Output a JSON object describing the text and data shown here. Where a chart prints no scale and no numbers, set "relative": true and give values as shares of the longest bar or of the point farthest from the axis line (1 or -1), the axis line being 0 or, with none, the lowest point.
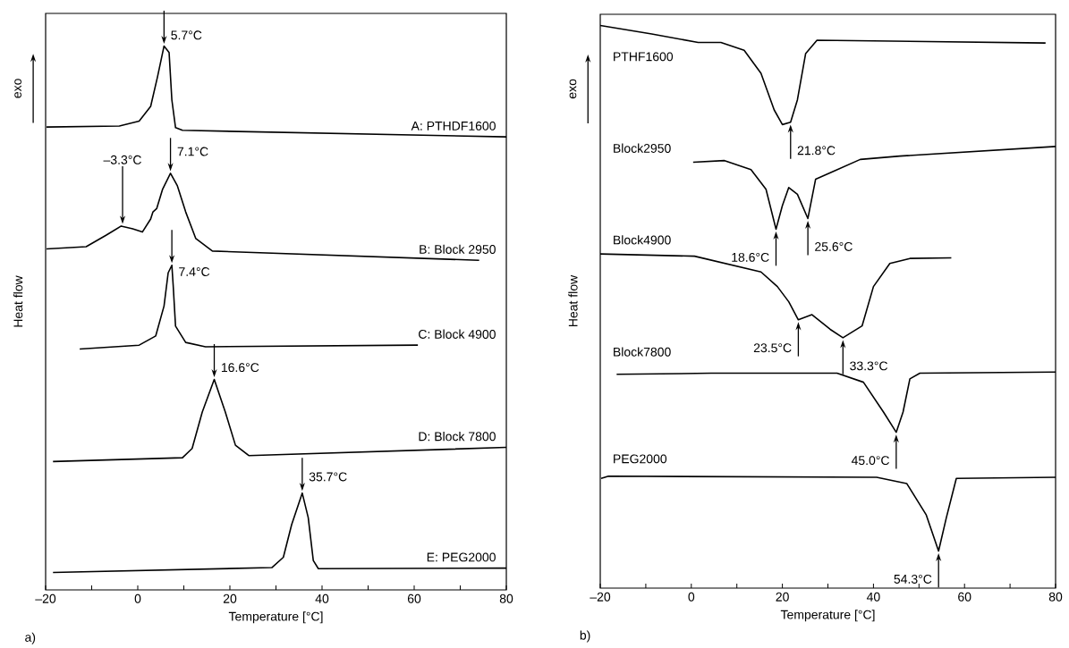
{
  "chart_data": [
    {
      "type": "line",
      "relative": true,
      "xlabel": "Temperature [°C]",
      "ylabel": "Heat flow",
      "xlim": [
        -20,
        80
      ],
      "xticks": [
        {
          "value": -20,
          "label": "–20"
        },
        {
          "value": -10,
          "label": null
        },
        0,
        {
          "value": 10,
          "label": null
        },
        20,
        {
          "value": 30,
          "label": null
        },
        40,
        {
          "value": 50,
          "label": null
        },
        60,
        {
          "value": 70,
          "label": null
        },
        80
      ],
      "marker": "none",
      "series": [
        {
          "name": "A: PTHDF1600",
          "color": "#000000",
          "x": [
            -19.8,
            -4.0,
            0.3,
            2.8,
            4.3,
            5.5,
            5.7,
            6.8,
            7.4,
            8.2,
            9.7,
            80
          ],
          "values": [
            0.851,
            0.853,
            0.862,
            0.889,
            0.944,
            0.992,
            1,
            0.988,
            0.901,
            0.85,
            0.845,
            0.833
          ]
        },
        {
          "name": "B: Block 2950",
          "color": "#000000",
          "x": [
            -19.8,
            -11.2,
            -6.9,
            -3.6,
            -1.1,
            1.0,
            2.8,
            3.3,
            4.1,
            5.4,
            7.1,
            8.6,
            10.4,
            12.6,
            16.2,
            74.1
          ],
          "values": [
            0.627,
            0.631,
            0.652,
            0.669,
            0.664,
            0.658,
            0.682,
            0.695,
            0.701,
            0.737,
            0.766,
            0.743,
            0.695,
            0.646,
            0.623,
            0.606
          ]
        },
        {
          "name": "C: Block 4900",
          "color": "#000000",
          "x": [
            -12.6,
            0.3,
            3.9,
            5.7,
            6.6,
            7.4,
            7.7,
            8.2,
            10.4,
            14.7,
            60.8
          ],
          "values": [
            0.443,
            0.45,
            0.467,
            0.522,
            0.583,
            0.597,
            0.558,
            0.485,
            0.455,
            0.447,
            0.45
          ]
        },
        {
          "name": "D: Block 7800",
          "color": "#000000",
          "x": [
            -18.4,
            9.7,
            11.8,
            14.0,
            16.6,
            19.0,
            21.2,
            24.1,
            80
          ],
          "values": [
            0.236,
            0.243,
            0.26,
            0.327,
            0.387,
            0.327,
            0.266,
            0.247,
            0.262
          ]
        },
        {
          "name": "E: PEG2000",
          "color": "#000000",
          "x": [
            -18.4,
            29.1,
            31.6,
            33.4,
            35.7,
            37.0,
            38.1,
            39.2,
            80
          ],
          "values": [
            0.032,
            0.041,
            0.06,
            0.12,
            0.178,
            0.133,
            0.054,
            0.039,
            0.04
          ]
        }
      ],
      "annotations": [
        "exo",
        {
          "text": "5.7°C",
          "x": 5.7,
          "y": 1
        },
        {
          "text": "7.1°C",
          "x": 7.1,
          "y": 0.766
        },
        {
          "text": "–3.3°C",
          "x": -3.3,
          "y": 0.669
        },
        {
          "text": "7.4°C",
          "x": 7.4,
          "y": 0.597
        },
        {
          "text": "16.6°C",
          "x": 16.6,
          "y": 0.387
        },
        {
          "text": "35.7°C",
          "x": 35.7,
          "y": 0.178
        },
        "a)"
      ]
    },
    {
      "type": "line",
      "relative": true,
      "xlabel": "Temperature [°C]",
      "ylabel": "Heat flow",
      "xlim": [
        -20,
        80
      ],
      "xticks": [
        {
          "value": -20,
          "label": "–20"
        },
        {
          "value": -10,
          "label": null
        },
        0,
        {
          "value": 10,
          "label": null
        },
        20,
        {
          "value": 30,
          "label": null
        },
        40,
        {
          "value": 50,
          "label": null
        },
        60,
        {
          "value": 70,
          "label": null
        },
        80
      ],
      "marker": "none",
      "series": [
        {
          "name": "PTHF1600",
          "color": "#000000",
          "x": [
            -20,
            -8.7,
            1.5,
            6.5,
            11.6,
            15.3,
            18.2,
            20.0,
            21.8,
            23.3,
            25.1,
            27.6,
            77.8
          ],
          "values": [
            1,
            0.985,
            0.97,
            0.97,
            0.956,
            0.915,
            0.85,
            0.824,
            0.828,
            0.868,
            0.95,
            0.974,
            0.969
          ]
        },
        {
          "name": "Block2950",
          "color": "#000000",
          "x": [
            0.4,
            7.3,
            13.1,
            16.4,
            18.6,
            20.0,
            21.4,
            23.3,
            25.6,
            27.3,
            31.3,
            37.1,
            45.8,
            80
          ],
          "values": [
            0.757,
            0.76,
            0.744,
            0.709,
            0.638,
            0.68,
            0.712,
            0.7,
            0.657,
            0.727,
            0.741,
            0.762,
            0.768,
            0.785
          ]
        },
        {
          "name": "Block4900",
          "color": "#000000",
          "x": [
            -20,
            0.7,
            15.3,
            18.9,
            21.4,
            23.5,
            26.5,
            30.5,
            33.3,
            37.5,
            40.0,
            43.6,
            48.0,
            57.1
          ],
          "values": [
            0.594,
            0.59,
            0.562,
            0.536,
            0.509,
            0.477,
            0.486,
            0.46,
            0.445,
            0.466,
            0.536,
            0.577,
            0.586,
            0.587
          ]
        },
        {
          "name": "Block7800",
          "color": "#000000",
          "x": [
            -16.4,
            4.4,
            32.0,
            37.8,
            42.2,
            45.0,
            46.5,
            48.0,
            50.2,
            80
          ],
          "values": [
            0.38,
            0.382,
            0.382,
            0.366,
            0.313,
            0.277,
            0.313,
            0.372,
            0.382,
            0.384
          ]
        },
        {
          "name": "PEG2000",
          "color": "#000000",
          "x": [
            -19.8,
            -18.2,
            40.7,
            47.3,
            51.6,
            54.3,
            56.0,
            58.2,
            80
          ],
          "values": [
            0.195,
            0.199,
            0.197,
            0.186,
            0.13,
            0.066,
            0.125,
            0.195,
            0.197
          ]
        }
      ],
      "annotations": [
        "exo",
        {
          "text": "21.8°C",
          "x": 21.8,
          "y": 0.828
        },
        {
          "text": "18.6°C",
          "x": 18.6,
          "y": 0.638
        },
        {
          "text": "25.6°C",
          "x": 25.6,
          "y": 0.657
        },
        {
          "text": "23.5°C",
          "x": 23.5,
          "y": 0.477
        },
        {
          "text": "33.3°C",
          "x": 33.3,
          "y": 0.445
        },
        {
          "text": "45.0°C",
          "x": 45.0,
          "y": 0.277
        },
        {
          "text": "54.3°C",
          "x": 54.3,
          "y": 0.066
        },
        "b)"
      ]
    }
  ]
}
